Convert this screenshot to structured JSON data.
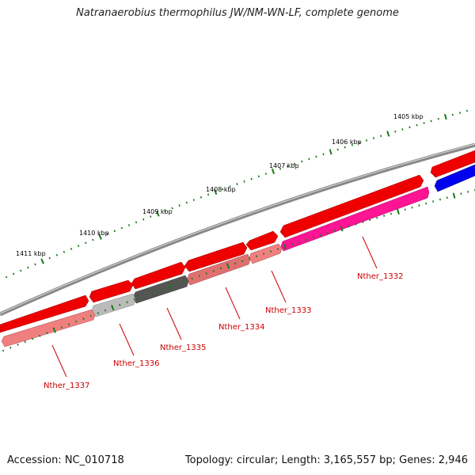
{
  "title": "Natranaerobius thermophilus JW/NM-WN-LF, complete genome",
  "footer": {
    "accession": "Accession: NC_010718",
    "summary": "Topology: circular; Length: 3,165,557 bp; Genes: 2,946"
  },
  "scale": {
    "ticks": [
      "1405 kbp",
      "1406 kbp",
      "1407 kbp",
      "1408 kbp",
      "1409 kbp",
      "1410 kbp",
      "1411 kbp"
    ],
    "color": "#1a7a1a"
  },
  "genes": [
    {
      "name": "Nther_1332",
      "color": "#ff1493"
    },
    {
      "name": "Nther_1333",
      "color": "#f08080"
    },
    {
      "name": "Nther_1334",
      "color": "#e07070"
    },
    {
      "name": "Nther_1335",
      "color": "#555555"
    },
    {
      "name": "Nther_1336",
      "color": "#bbbbbb"
    },
    {
      "name": "Nther_1337",
      "color": "#f08080"
    }
  ],
  "colors": {
    "forward_gene": "#ee0000",
    "reverse_unlabeled_gene": "#0000ee",
    "backbone": "#888888",
    "label": "#cc0000"
  }
}
